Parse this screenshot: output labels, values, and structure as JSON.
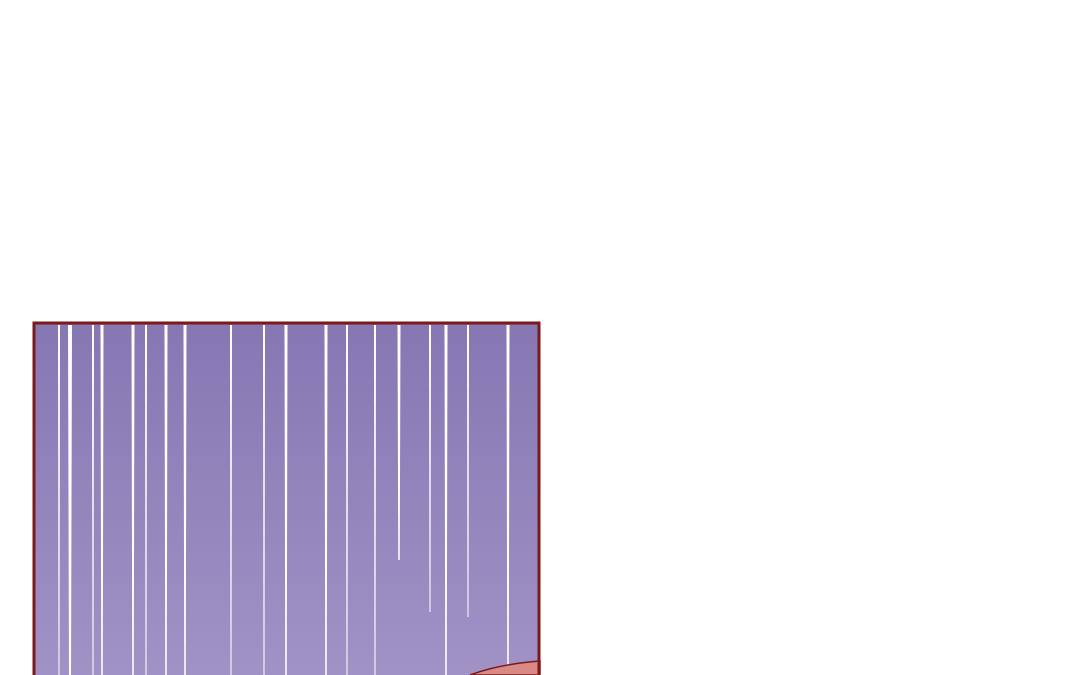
{
  "comic_panel": {
    "colors": {
      "page_background": "#ffffff",
      "panel_border": "#7a1a1a",
      "sky_top": "#8677b3",
      "sky_bottom": "#a193c6",
      "speed_lines": "#ffffff",
      "partial_figure": "#d98a86"
    },
    "icons": [
      "speed-lines",
      "partial-figure"
    ]
  }
}
